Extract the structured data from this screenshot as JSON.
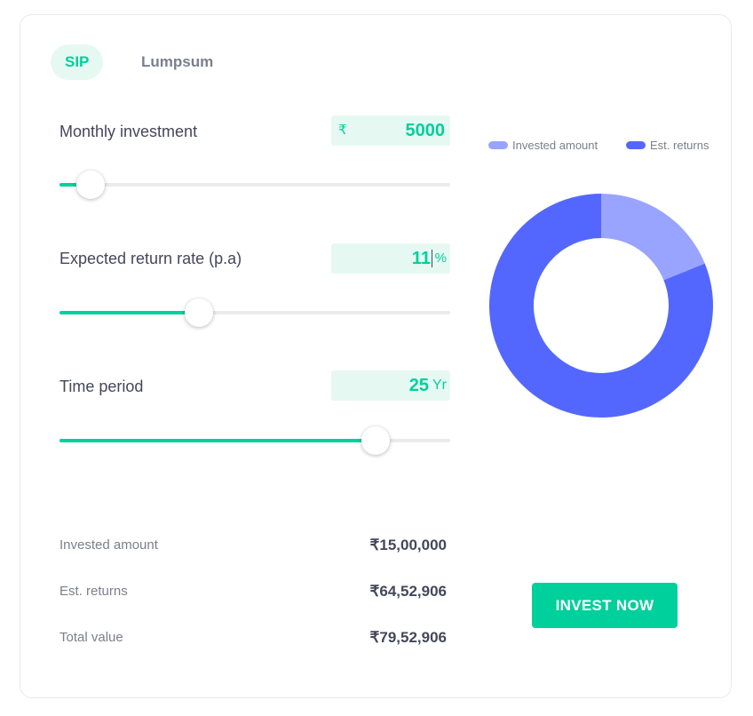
{
  "tabs": [
    {
      "label": "SIP",
      "active": true
    },
    {
      "label": "Lumpsum",
      "active": false
    }
  ],
  "fields": {
    "monthly": {
      "label": "Monthly investment",
      "prefix": "₹",
      "value": "5000",
      "slider_fraction": 0.08
    },
    "rate": {
      "label": "Expected return rate (p.a)",
      "value": "11",
      "suffix": "%",
      "slider_fraction": 0.357
    },
    "period": {
      "label": "Time period",
      "value": "25",
      "suffix": "Yr",
      "slider_fraction": 0.808
    }
  },
  "legend": [
    {
      "label": "Invested amount",
      "color": "#98a4ff"
    },
    {
      "label": "Est. returns",
      "color": "#5367ff"
    }
  ],
  "chart_data": {
    "type": "pie",
    "categories": [
      "Invested amount",
      "Est. returns"
    ],
    "values": [
      1500000,
      6452906
    ]
  },
  "summary": [
    {
      "label": "Invested amount",
      "value": "₹15,00,000"
    },
    {
      "label": "Est. returns",
      "value": "₹64,52,906"
    },
    {
      "label": "Total value",
      "value": "₹79,52,906"
    }
  ],
  "cta": {
    "label": "INVEST NOW"
  },
  "colors": {
    "accent": "#00d09c",
    "accent_light": "#e6f8f2",
    "invested": "#98a4ff",
    "returns": "#5367ff"
  }
}
